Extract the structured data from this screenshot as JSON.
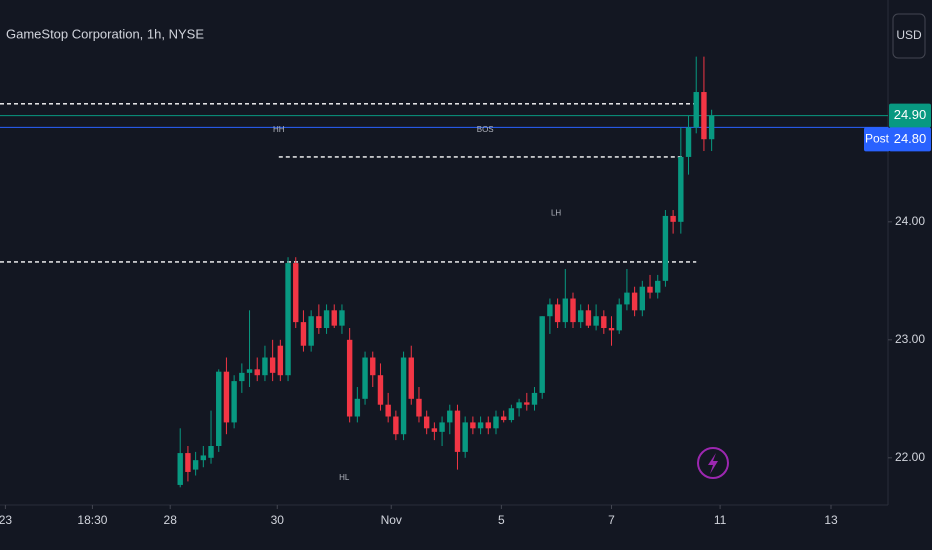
{
  "chart_data": {
    "type": "candlestick",
    "title": "GameStop Corporation, 1h, NYSE",
    "currency_button": "USD",
    "up_color": "#089981",
    "down_color": "#f23645",
    "x": [
      0,
      1,
      2,
      3,
      4,
      5,
      6,
      7,
      8,
      9,
      10,
      11,
      12,
      13,
      14,
      15,
      16,
      17,
      18,
      19,
      20,
      21,
      22,
      23,
      24,
      25,
      26,
      27,
      28,
      29,
      30,
      31,
      32,
      33,
      34,
      35,
      36,
      37,
      38,
      39,
      40,
      41,
      42,
      43,
      44,
      45,
      46,
      47,
      48,
      49,
      50,
      51,
      52,
      53,
      54,
      55,
      56,
      57,
      58,
      59,
      60,
      61,
      62,
      63,
      64,
      65,
      66,
      67,
      68,
      69
    ],
    "open": [
      21.77,
      22.04,
      21.9,
      21.98,
      22.0,
      22.1,
      22.73,
      22.3,
      22.65,
      22.72,
      22.75,
      22.7,
      22.85,
      22.95,
      22.7,
      23.65,
      23.15,
      22.95,
      23.2,
      23.1,
      23.25,
      23.12,
      23.0,
      22.35,
      22.5,
      22.85,
      22.7,
      22.45,
      22.35,
      22.2,
      22.85,
      22.5,
      22.35,
      22.25,
      22.22,
      22.3,
      22.4,
      22.05,
      22.3,
      22.25,
      22.3,
      22.25,
      22.35,
      22.32,
      22.42,
      22.47,
      22.45,
      22.55,
      23.2,
      23.3,
      23.15,
      23.35,
      23.15,
      23.25,
      23.12,
      23.2,
      23.1,
      23.08,
      23.3,
      23.4,
      23.25,
      23.45,
      23.4,
      23.5,
      24.05,
      24.0,
      24.55,
      24.8,
      25.1,
      24.7
    ],
    "high": [
      22.25,
      22.1,
      22.05,
      22.1,
      22.4,
      22.75,
      22.85,
      22.7,
      22.8,
      23.25,
      22.85,
      22.95,
      23.0,
      23.0,
      23.7,
      23.7,
      23.25,
      23.25,
      23.3,
      23.3,
      23.3,
      23.3,
      23.1,
      22.6,
      22.9,
      22.9,
      22.8,
      22.55,
      22.4,
      22.9,
      22.95,
      22.6,
      22.4,
      22.3,
      22.35,
      22.45,
      22.45,
      22.35,
      22.35,
      22.35,
      22.35,
      22.4,
      22.4,
      22.45,
      22.5,
      22.55,
      22.6,
      23.2,
      23.35,
      23.35,
      23.6,
      23.4,
      23.3,
      23.3,
      23.3,
      23.25,
      23.2,
      23.35,
      23.6,
      23.45,
      23.5,
      23.55,
      23.55,
      24.1,
      24.1,
      24.8,
      24.9,
      25.4,
      25.4,
      24.95
    ],
    "low": [
      21.75,
      21.8,
      21.85,
      21.92,
      21.95,
      22.05,
      22.2,
      22.25,
      22.55,
      22.6,
      22.65,
      22.65,
      22.65,
      22.65,
      22.65,
      23.1,
      22.9,
      22.9,
      23.05,
      23.05,
      23.1,
      23.05,
      22.3,
      22.3,
      22.45,
      22.6,
      22.4,
      22.3,
      22.15,
      22.15,
      22.45,
      22.3,
      22.2,
      22.15,
      22.1,
      22.2,
      21.9,
      22.0,
      22.2,
      22.2,
      22.2,
      22.2,
      22.3,
      22.3,
      22.35,
      22.4,
      22.4,
      22.5,
      23.05,
      23.1,
      23.1,
      23.1,
      23.1,
      23.1,
      23.08,
      23.05,
      22.95,
      23.05,
      23.25,
      23.2,
      23.2,
      23.35,
      23.35,
      23.45,
      23.9,
      23.9,
      24.4,
      24.75,
      24.6,
      24.6
    ],
    "close": [
      22.04,
      21.88,
      21.98,
      22.02,
      22.1,
      22.73,
      22.3,
      22.65,
      22.72,
      22.75,
      22.7,
      22.85,
      22.72,
      22.7,
      23.65,
      23.15,
      22.95,
      23.2,
      23.1,
      23.25,
      23.12,
      23.25,
      22.35,
      22.5,
      22.85,
      22.7,
      22.45,
      22.35,
      22.2,
      22.85,
      22.5,
      22.35,
      22.25,
      22.22,
      22.3,
      22.4,
      22.05,
      22.3,
      22.25,
      22.3,
      22.25,
      22.35,
      22.32,
      22.42,
      22.47,
      22.45,
      22.55,
      23.2,
      23.3,
      23.15,
      23.35,
      23.15,
      23.25,
      23.12,
      23.2,
      23.1,
      23.08,
      23.3,
      23.4,
      23.25,
      23.45,
      23.4,
      23.5,
      24.05,
      24.0,
      24.55,
      24.8,
      25.1,
      24.7,
      24.9
    ],
    "xlim": [
      -23.4,
      91.9
    ],
    "xticks": [
      {
        "value": -22.7,
        "label": "23"
      },
      {
        "value": -11.4,
        "label": "18:30"
      },
      {
        "value": -1.3,
        "label": "28"
      },
      {
        "value": 12.6,
        "label": "30"
      },
      {
        "value": 27.4,
        "label": "Nov"
      },
      {
        "value": 41.7,
        "label": "5"
      },
      {
        "value": 56.0,
        "label": "7"
      },
      {
        "value": 70.1,
        "label": "11"
      },
      {
        "value": 84.5,
        "label": "13"
      }
    ],
    "ylim": [
      21.6,
      25.88
    ],
    "yticks": [
      {
        "value": 22,
        "label": "22.00"
      },
      {
        "value": 23,
        "label": "23.00"
      },
      {
        "value": 24,
        "label": "24.00"
      }
    ],
    "levels": [
      {
        "value": 25.0,
        "from": -23.4,
        "to": 67
      },
      {
        "value": 24.55,
        "from": 12.8,
        "to": 65.5
      },
      {
        "value": 23.66,
        "from": -23.4,
        "to": 67
      }
    ],
    "price_lines": [
      {
        "value": 24.9,
        "label": "24.90",
        "color": "#089981"
      },
      {
        "value": 24.8,
        "label": "24.80",
        "name": "Post",
        "color": "#2962ff"
      }
    ],
    "annotations": [
      {
        "text": "HH",
        "x": 12.8,
        "y": 24.78
      },
      {
        "text": "BOS",
        "x": 39.6,
        "y": 24.78
      },
      {
        "text": "LH",
        "x": 48.8,
        "y": 24.07
      },
      {
        "text": "HL",
        "x": 21.3,
        "y": 21.83
      }
    ]
  }
}
